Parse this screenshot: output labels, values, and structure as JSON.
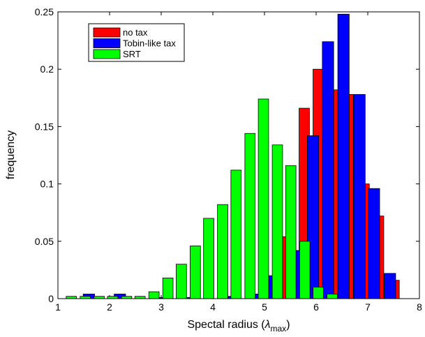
{
  "chart_data": {
    "type": "bar",
    "xlabel": "Spectal radius (",
    "xlabel_symbol": "λ",
    "xlabel_sub": "max",
    "xlabel_close": ")",
    "ylabel": "frequency",
    "xlim": [
      1,
      8
    ],
    "ylim": [
      0,
      0.25
    ],
    "xticks": [
      "1",
      "2",
      "3",
      "4",
      "5",
      "6",
      "7",
      "8"
    ],
    "yticks": [
      "0",
      "0.05",
      "0.1",
      "0.15",
      "0.2",
      "0.25"
    ],
    "legend_position": "top-left",
    "series": [
      {
        "name": "no tax",
        "color": "#ff0000",
        "bins": [
          {
            "x": 5.43,
            "y": 0.054
          },
          {
            "x": 5.77,
            "y": 0.166
          },
          {
            "x": 6.04,
            "y": 0.2
          },
          {
            "x": 6.33,
            "y": 0.182
          },
          {
            "x": 6.62,
            "y": 0.178
          },
          {
            "x": 6.93,
            "y": 0.1
          },
          {
            "x": 7.21,
            "y": 0.072
          },
          {
            "x": 7.51,
            "y": 0.016
          }
        ]
      },
      {
        "name": "Tobin-like tax",
        "color": "#0000ff",
        "bins": [
          {
            "x": 1.6,
            "y": 0.004
          },
          {
            "x": 2.2,
            "y": 0.004
          },
          {
            "x": 3.0,
            "y": 0.001
          },
          {
            "x": 3.5,
            "y": 0.001
          },
          {
            "x": 4.25,
            "y": 0.002
          },
          {
            "x": 4.85,
            "y": 0.004
          },
          {
            "x": 5.06,
            "y": 0.02
          },
          {
            "x": 5.62,
            "y": 0.042
          },
          {
            "x": 5.94,
            "y": 0.142
          },
          {
            "x": 6.23,
            "y": 0.224
          },
          {
            "x": 6.53,
            "y": 0.248
          },
          {
            "x": 6.84,
            "y": 0.178
          },
          {
            "x": 7.12,
            "y": 0.096
          },
          {
            "x": 7.43,
            "y": 0.022
          }
        ]
      },
      {
        "name": "SRT",
        "color": "#00ff00",
        "bins": [
          {
            "x": 1.26,
            "y": 0.002
          },
          {
            "x": 1.53,
            "y": 0.002
          },
          {
            "x": 1.8,
            "y": 0.002
          },
          {
            "x": 2.06,
            "y": 0.002
          },
          {
            "x": 2.33,
            "y": 0.002
          },
          {
            "x": 2.59,
            "y": 0.002
          },
          {
            "x": 2.86,
            "y": 0.006
          },
          {
            "x": 3.13,
            "y": 0.018
          },
          {
            "x": 3.39,
            "y": 0.03
          },
          {
            "x": 3.66,
            "y": 0.046
          },
          {
            "x": 3.92,
            "y": 0.07
          },
          {
            "x": 4.19,
            "y": 0.082
          },
          {
            "x": 4.45,
            "y": 0.112
          },
          {
            "x": 4.72,
            "y": 0.144
          },
          {
            "x": 4.98,
            "y": 0.174
          },
          {
            "x": 5.25,
            "y": 0.134
          },
          {
            "x": 5.51,
            "y": 0.116
          },
          {
            "x": 5.78,
            "y": 0.05
          },
          {
            "x": 6.04,
            "y": 0.01
          },
          {
            "x": 6.31,
            "y": 0.004
          }
        ]
      }
    ]
  }
}
